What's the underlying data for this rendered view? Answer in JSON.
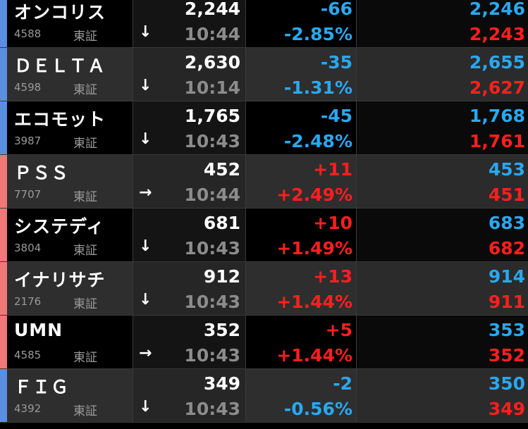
{
  "colors": {
    "dark_bg": "#000000",
    "light_bg": "#2e2e2e",
    "stripe_down": "#5b8ee0",
    "stripe_up": "#f07878",
    "down": "#2aa8f2",
    "up": "#ff1f1f",
    "ask": "#29a8f0",
    "bid": "#ff1f1f"
  },
  "rows": [
    {
      "name": "オンコリス",
      "code": "4588",
      "exchange": "東証",
      "arrow": "↓",
      "arrow_icon": "arrow-down-icon",
      "price": "2,244",
      "time": "10:44",
      "change": "-66",
      "percent": "-2.85%",
      "ask": "2,246",
      "bid": "2,243",
      "direction": "down",
      "shade": "dark"
    },
    {
      "name": "ＤＥＬＴＡ",
      "code": "4598",
      "exchange": "東証",
      "arrow": "↓",
      "arrow_icon": "arrow-down-icon",
      "price": "2,630",
      "time": "10:14",
      "change": "-35",
      "percent": "-1.31%",
      "ask": "2,655",
      "bid": "2,627",
      "direction": "down",
      "shade": "light"
    },
    {
      "name": "エコモット",
      "code": "3987",
      "exchange": "東証",
      "arrow": "↓",
      "arrow_icon": "arrow-down-icon",
      "price": "1,765",
      "time": "10:43",
      "change": "-45",
      "percent": "-2.48%",
      "ask": "1,768",
      "bid": "1,761",
      "direction": "down",
      "shade": "dark"
    },
    {
      "name": "ＰＳＳ",
      "code": "7707",
      "exchange": "東証",
      "arrow": "→",
      "arrow_icon": "arrow-right-icon",
      "price": "452",
      "time": "10:44",
      "change": "+11",
      "percent": "+2.49%",
      "ask": "453",
      "bid": "451",
      "direction": "up",
      "shade": "light"
    },
    {
      "name": "システディ",
      "code": "3804",
      "exchange": "東証",
      "arrow": "↓",
      "arrow_icon": "arrow-down-icon",
      "price": "681",
      "time": "10:43",
      "change": "+10",
      "percent": "+1.49%",
      "ask": "683",
      "bid": "682",
      "direction": "up",
      "shade": "dark"
    },
    {
      "name": "イナリサチ",
      "code": "2176",
      "exchange": "東証",
      "arrow": "↓",
      "arrow_icon": "arrow-down-icon",
      "price": "912",
      "time": "10:43",
      "change": "+13",
      "percent": "+1.44%",
      "ask": "914",
      "bid": "911",
      "direction": "up",
      "shade": "light"
    },
    {
      "name": "UMN",
      "code": "4585",
      "exchange": "東証",
      "arrow": "→",
      "arrow_icon": "arrow-right-icon",
      "price": "352",
      "time": "10:43",
      "change": "+5",
      "percent": "+1.44%",
      "ask": "353",
      "bid": "352",
      "direction": "up",
      "shade": "dark"
    },
    {
      "name": "ＦＩＧ",
      "code": "4392",
      "exchange": "東証",
      "arrow": "↓",
      "arrow_icon": "arrow-down-icon",
      "price": "349",
      "time": "10:43",
      "change": "-2",
      "percent": "-0.56%",
      "ask": "350",
      "bid": "349",
      "direction": "down",
      "shade": "light"
    }
  ]
}
